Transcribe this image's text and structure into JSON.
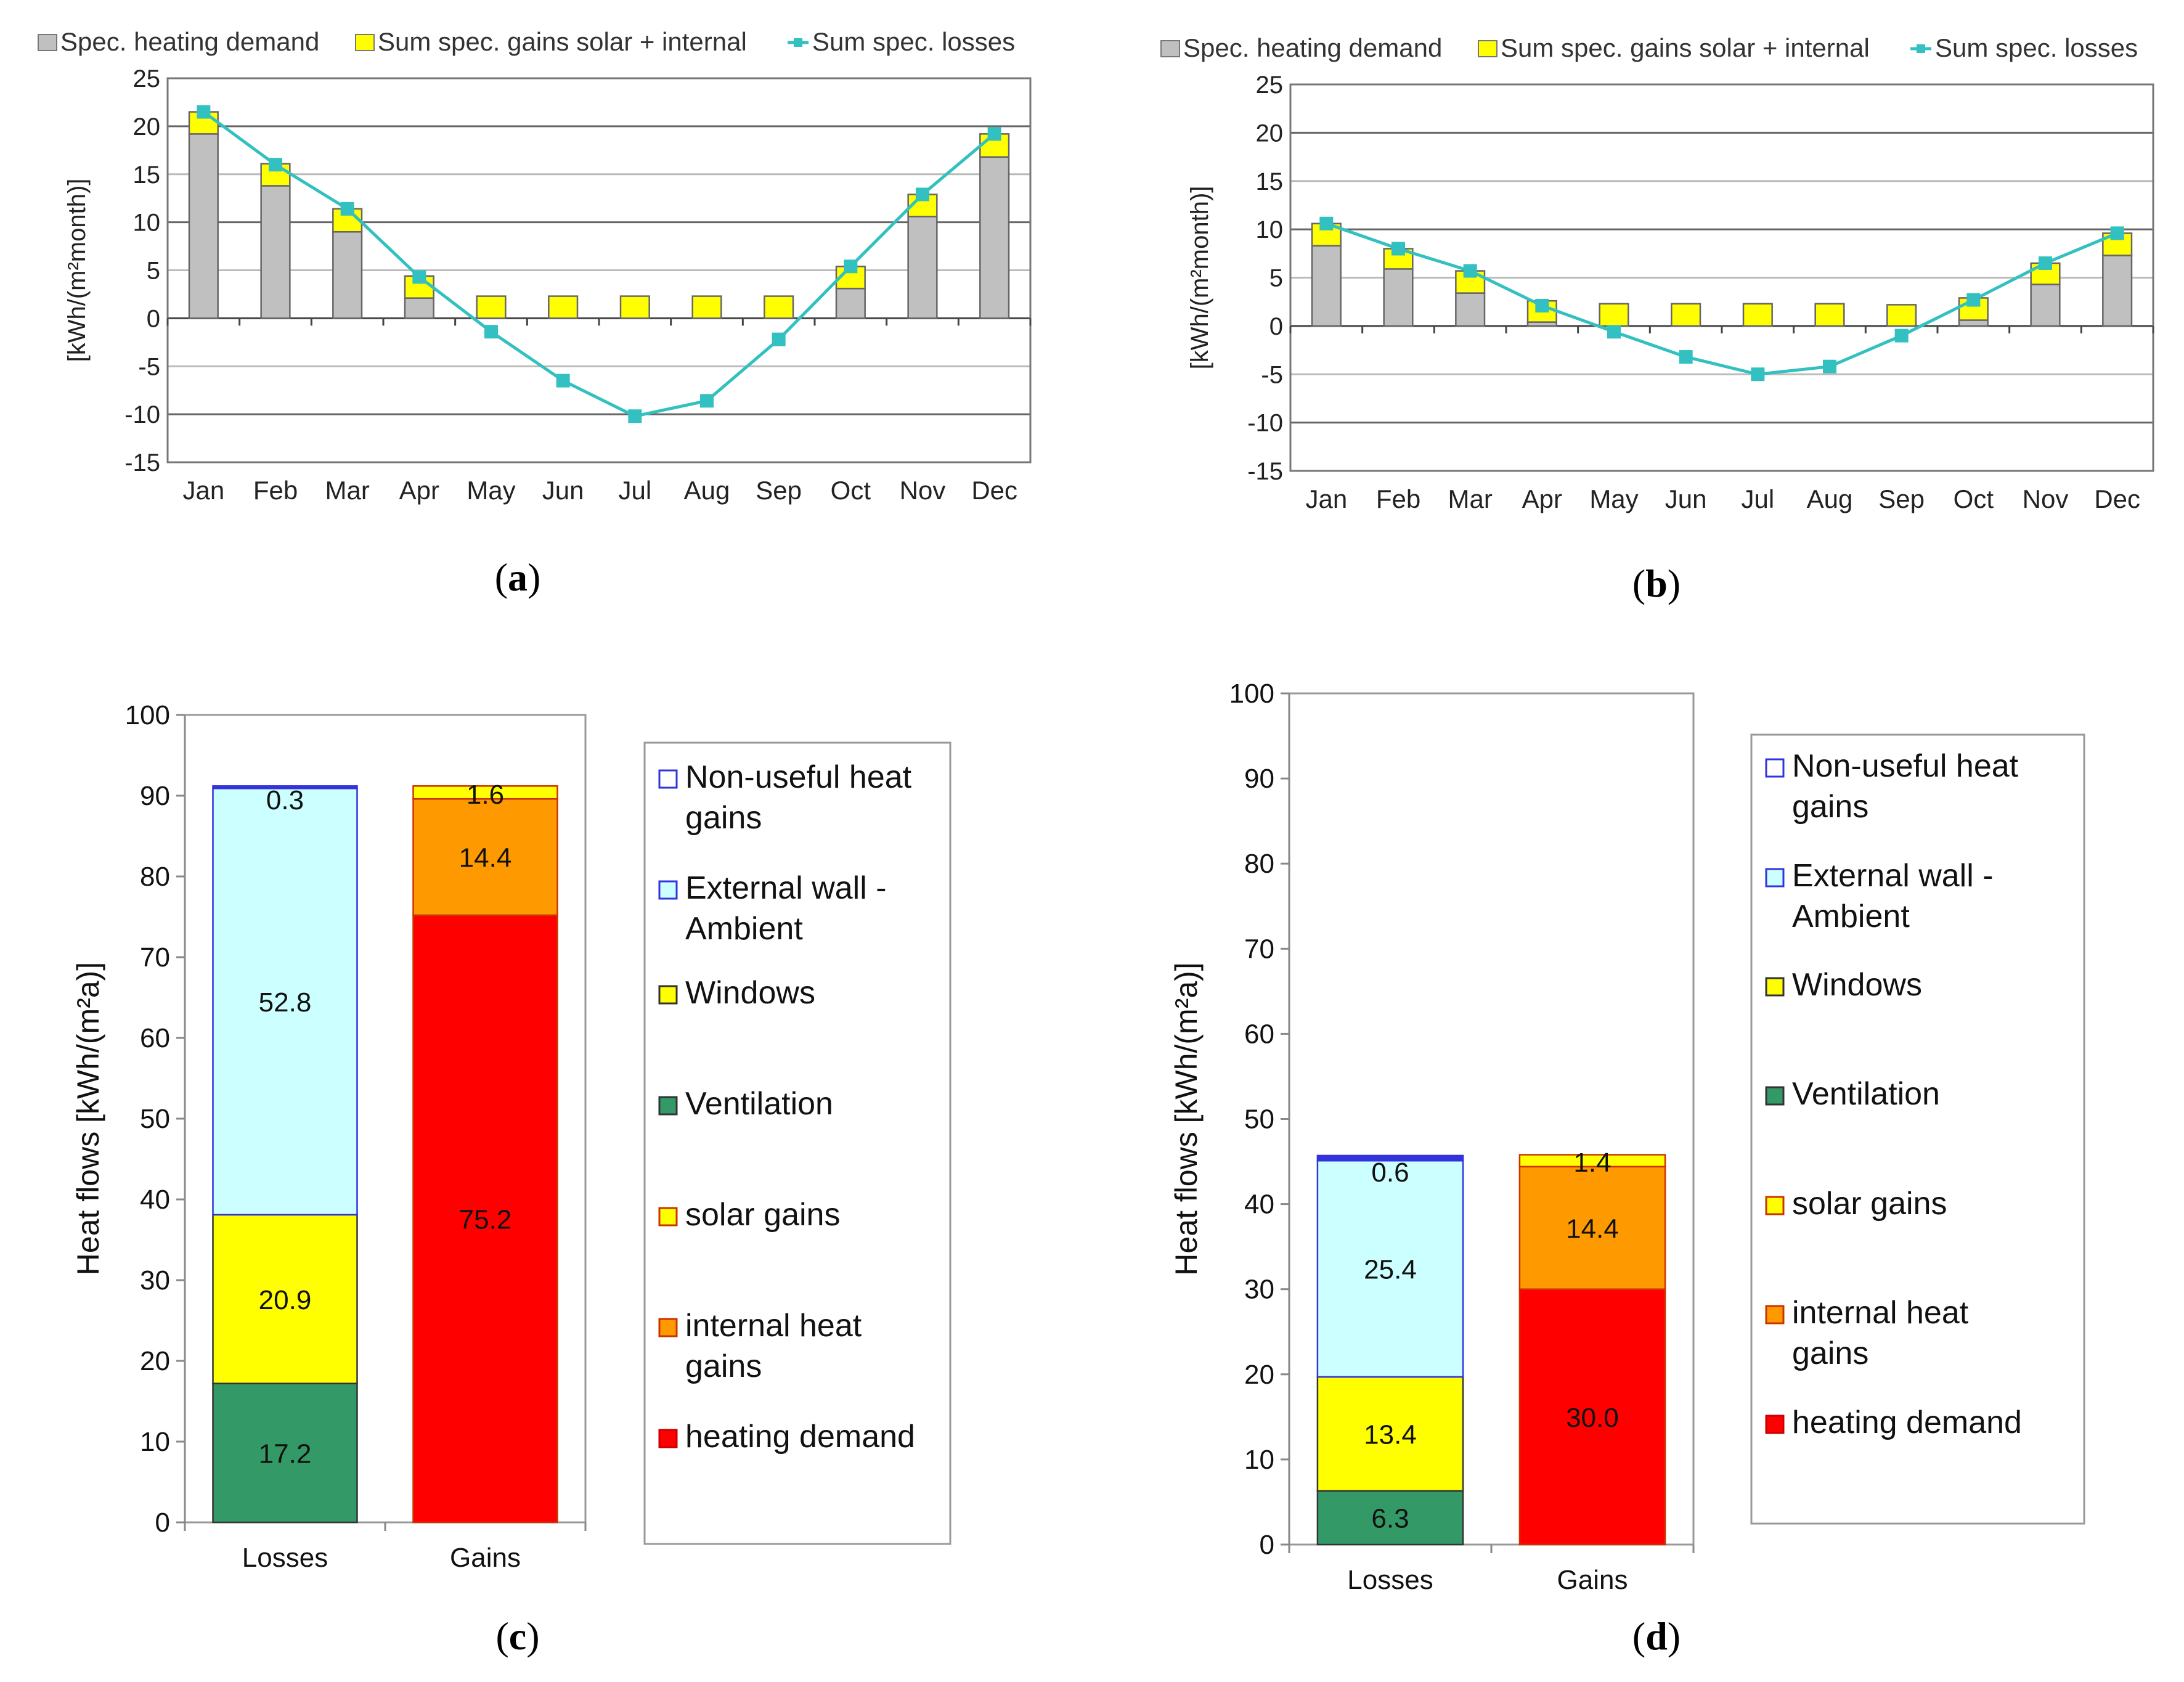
{
  "colors": {
    "heating_monthly": "#c0c0c0",
    "gains_monthly": "#ffff00",
    "losses_line": "#33c0c0",
    "non_useful": "#3333dd",
    "external_wall": "#ccffff",
    "windows": "#ffff00",
    "ventilation": "#339966",
    "solar": "#ffff00",
    "internal": "#ff9900",
    "heating_annual": "#ff0000"
  },
  "chart_data": [
    {
      "id": "a",
      "type": "bar",
      "panel_label": "a",
      "legend": [
        "Spec. heating demand",
        "Sum spec. gains solar + internal",
        "Sum spec. losses"
      ],
      "ylabel": "[kWh/(m²month)]",
      "ylim": [
        -15,
        25
      ],
      "yticks": [
        "25",
        "20",
        "15",
        "10",
        "5",
        "0",
        "-5",
        "-10",
        "-15"
      ],
      "categories": [
        "Jan",
        "Feb",
        "Mar",
        "Apr",
        "May",
        "Jun",
        "Jul",
        "Aug",
        "Sep",
        "Oct",
        "Nov",
        "Dec"
      ],
      "series": [
        {
          "name": "Spec. heating demand",
          "values": [
            19.2,
            13.8,
            9.0,
            2.1,
            0,
            0,
            0,
            0,
            0,
            3.1,
            10.6,
            16.8
          ]
        },
        {
          "name": "Sum spec. gains solar + internal",
          "values": [
            2.3,
            2.3,
            2.4,
            2.3,
            2.3,
            2.3,
            2.3,
            2.3,
            2.3,
            2.3,
            2.3,
            2.4
          ]
        },
        {
          "name": "Sum spec. losses",
          "values": [
            21.5,
            16.0,
            11.4,
            4.3,
            -1.4,
            -6.5,
            -10.2,
            -8.6,
            -2.2,
            5.4,
            12.9,
            19.2
          ]
        }
      ]
    },
    {
      "id": "b",
      "type": "bar",
      "panel_label": "b",
      "legend": [
        "Spec. heating demand",
        "Sum spec. gains solar + internal",
        "Sum spec. losses"
      ],
      "ylabel": "[kWh/(m²month)]",
      "ylim": [
        -15,
        25
      ],
      "yticks": [
        "25",
        "20",
        "15",
        "10",
        "5",
        "0",
        "-5",
        "-10",
        "-15"
      ],
      "categories": [
        "Jan",
        "Feb",
        "Mar",
        "Apr",
        "May",
        "Jun",
        "Jul",
        "Aug",
        "Sep",
        "Oct",
        "Nov",
        "Dec"
      ],
      "series": [
        {
          "name": "Spec. heating demand",
          "values": [
            8.3,
            5.9,
            3.4,
            0.4,
            0,
            0,
            0,
            0,
            0,
            0.6,
            4.3,
            7.3
          ]
        },
        {
          "name": "Sum spec. gains solar + internal",
          "values": [
            2.3,
            2.1,
            2.3,
            2.2,
            2.3,
            2.3,
            2.3,
            2.3,
            2.2,
            2.3,
            2.2,
            2.3
          ]
        },
        {
          "name": "Sum spec. losses",
          "values": [
            10.6,
            8.0,
            5.7,
            2.1,
            -0.6,
            -3.2,
            -5.0,
            -4.2,
            -1.0,
            2.7,
            6.5,
            9.6
          ]
        }
      ]
    },
    {
      "id": "c",
      "type": "bar",
      "panel_label": "c",
      "ylabel": "Heat flows [kWh/(m²a)]",
      "ylim": [
        0,
        100
      ],
      "yticks": [
        "100",
        "90",
        "80",
        "70",
        "60",
        "50",
        "40",
        "30",
        "20",
        "10",
        "0"
      ],
      "categories": [
        "Losses",
        "Gains"
      ],
      "stacks": [
        [
          {
            "name": "Ventilation",
            "value": 17.2,
            "label": "17.2"
          },
          {
            "name": "Windows",
            "value": 20.9,
            "label": "20.9"
          },
          {
            "name": "External wall - Ambient",
            "value": 52.8,
            "label": "52.8"
          },
          {
            "name": "Non-useful heat gains",
            "value": 0.3,
            "label": "0.3"
          }
        ],
        [
          {
            "name": "heating demand",
            "value": 75.2,
            "label": "75.2"
          },
          {
            "name": "internal heat gains",
            "value": 14.4,
            "label": "14.4"
          },
          {
            "name": "solar gains",
            "value": 1.6,
            "label": "1.6"
          }
        ]
      ],
      "legend": [
        {
          "lines": [
            "Non-useful heat",
            "gains"
          ]
        },
        {
          "lines": [
            "External wall -",
            "Ambient"
          ]
        },
        {
          "lines": [
            "Windows"
          ]
        },
        {
          "lines": [
            "Ventilation"
          ]
        },
        {
          "lines": [
            "solar gains"
          ]
        },
        {
          "lines": [
            "internal heat",
            "gains"
          ]
        },
        {
          "lines": [
            "heating demand"
          ]
        }
      ]
    },
    {
      "id": "d",
      "type": "bar",
      "panel_label": "d",
      "ylabel": "Heat flows [kWh/(m²a)]",
      "ylim": [
        0,
        100
      ],
      "yticks": [
        "100",
        "90",
        "80",
        "70",
        "60",
        "50",
        "40",
        "30",
        "20",
        "10",
        "0"
      ],
      "categories": [
        "Losses",
        "Gains"
      ],
      "stacks": [
        [
          {
            "name": "Ventilation",
            "value": 6.3,
            "label": "6.3"
          },
          {
            "name": "Windows",
            "value": 13.4,
            "label": "13.4"
          },
          {
            "name": "External wall - Ambient",
            "value": 25.4,
            "label": "25.4"
          },
          {
            "name": "Non-useful heat gains",
            "value": 0.6,
            "label": "0.6"
          }
        ],
        [
          {
            "name": "heating demand",
            "value": 30.0,
            "label": "30.0"
          },
          {
            "name": "internal heat gains",
            "value": 14.4,
            "label": "14.4"
          },
          {
            "name": "solar gains",
            "value": 1.4,
            "label": "1.4"
          }
        ]
      ],
      "legend": [
        {
          "lines": [
            "Non-useful heat",
            "gains"
          ]
        },
        {
          "lines": [
            "External wall -",
            "Ambient"
          ]
        },
        {
          "lines": [
            "Windows"
          ]
        },
        {
          "lines": [
            "Ventilation"
          ]
        },
        {
          "lines": [
            "solar gains"
          ]
        },
        {
          "lines": [
            "internal heat",
            "gains"
          ]
        },
        {
          "lines": [
            "heating demand"
          ]
        }
      ]
    }
  ]
}
